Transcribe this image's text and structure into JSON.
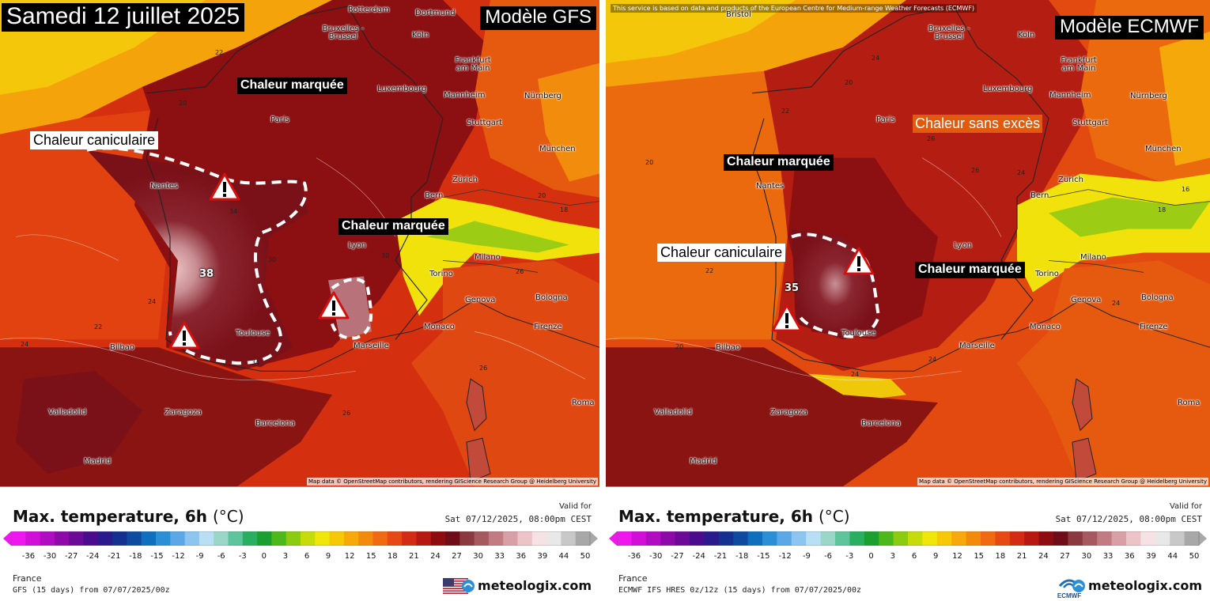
{
  "panels": [
    {
      "id": "gfs",
      "title": "Samedi 12 juillet 2025",
      "model_label": "Modèle GFS",
      "tags": [
        {
          "text": "Chaleur marquée",
          "style": "dark"
        },
        {
          "text": "Chaleur caniculaire",
          "style": "white"
        },
        {
          "text": "Chaleur marquée",
          "style": "dark"
        }
      ],
      "cities": [
        "Rotterdam",
        "Dortmund",
        "Bruxelles - Brussel",
        "Köln",
        "Frankfurt am Main",
        "Luxembourg",
        "Mannheim",
        "Nürnberg",
        "Paris",
        "Stuttgart",
        "München",
        "Nantes",
        "Zürich",
        "Bern",
        "Lyon",
        "Milano",
        "Torino",
        "Genova",
        "Bologna",
        "Monaco",
        "Firenze",
        "Toulouse",
        "Marseille",
        "Bilbao",
        "Valladolid",
        "Zaragoza",
        "Barcelona",
        "Madrid",
        "Roma"
      ],
      "contour_values": [
        "22",
        "20",
        "30",
        "34",
        "30",
        "24",
        "22",
        "24",
        "26",
        "18",
        "20",
        "34",
        "26",
        "26"
      ],
      "peak_value": "38",
      "attribution": "Map data © OpenStreetMap contributors, rendering GIScience Research Group @ Heidelberg University",
      "legend": {
        "title": "Max. temperature, 6h",
        "unit": "(°C)",
        "valid_label": "Valid for",
        "valid_date": "Sat 07/12/2025, 08:00pm CEST",
        "region": "France",
        "run": "GFS (15 days) from 07/07/2025/00z",
        "brand": "meteologix.com",
        "flag_icon": "us-flag-icon"
      }
    },
    {
      "id": "ecmwf",
      "title": "",
      "model_label": "Modèle ECMWF",
      "source_note": "This service is based on data and products of the European Centre for Medium-range Weather Forecasts (ECMWF)",
      "tags": [
        {
          "text": "Chaleur sans excès",
          "style": "orange"
        },
        {
          "text": "Chaleur marquée",
          "style": "dark"
        },
        {
          "text": "Chaleur caniculaire",
          "style": "white"
        },
        {
          "text": "Chaleur marquée",
          "style": "dark"
        }
      ],
      "cities": [
        "Bristol",
        "Bruxelles - Brussel",
        "Köln",
        "Frankfurt am Main",
        "Luxembourg",
        "Mannheim",
        "Nürnberg",
        "Paris",
        "Stuttgart",
        "München",
        "Nantes",
        "Zürich",
        "Bern",
        "Lyon",
        "Milano",
        "Torino",
        "Genova",
        "Bologna",
        "Monaco",
        "Firenze",
        "Toulouse",
        "Marseille",
        "Bilbao",
        "Valladolid",
        "Zaragoza",
        "Barcelona",
        "Madrid",
        "Roma"
      ],
      "contour_values": [
        "24",
        "20",
        "22",
        "20",
        "26",
        "24",
        "16",
        "18",
        "22",
        "20",
        "24",
        "26",
        "24",
        "24"
      ],
      "peak_value": "35",
      "attribution": "Map data © OpenStreetMap contributors, rendering GIScience Research Group @ Heidelberg University",
      "legend": {
        "title": "Max. temperature, 6h",
        "unit": "(°C)",
        "valid_label": "Valid for",
        "valid_date": "Sat 07/12/2025, 08:00pm CEST",
        "region": "France",
        "run": "ECMWF IFS HRES 0z/12z (15 days) from 07/07/2025/00z",
        "brand": "meteologix.com",
        "logo_text": "ECMWF"
      }
    }
  ],
  "colorbar": {
    "ticks": [
      "-36",
      "-30",
      "-27",
      "-24",
      "-21",
      "-18",
      "-15",
      "-12",
      "-9",
      "-6",
      "-3",
      "0",
      "3",
      "6",
      "9",
      "12",
      "15",
      "18",
      "21",
      "24",
      "27",
      "30",
      "33",
      "36",
      "39",
      "44",
      "50"
    ],
    "colors": [
      "#f016f0",
      "#d10fd6",
      "#b00cc2",
      "#8e0aa8",
      "#6b0a96",
      "#4a0b8c",
      "#2a1a8c",
      "#15318f",
      "#0d4aa0",
      "#0f6fbf",
      "#2b8fd6",
      "#5aa9e6",
      "#8cc6f0",
      "#b9dff5",
      "#9ad7c8",
      "#5dc49b",
      "#28b060",
      "#1aa02e",
      "#4cb81a",
      "#8ccc10",
      "#c6dc0a",
      "#f0e60a",
      "#f6c808",
      "#f7a80a",
      "#f48a0c",
      "#ef6a10",
      "#e64a12",
      "#d42c14",
      "#b81812",
      "#8e0c10",
      "#6e0c18",
      "#8a3a3e",
      "#a65a60",
      "#c07c82",
      "#d8a0a6",
      "#ecc4c8",
      "#f6e2e4",
      "#e8e8e8",
      "#c8c8c8",
      "#a8a8a8"
    ]
  }
}
